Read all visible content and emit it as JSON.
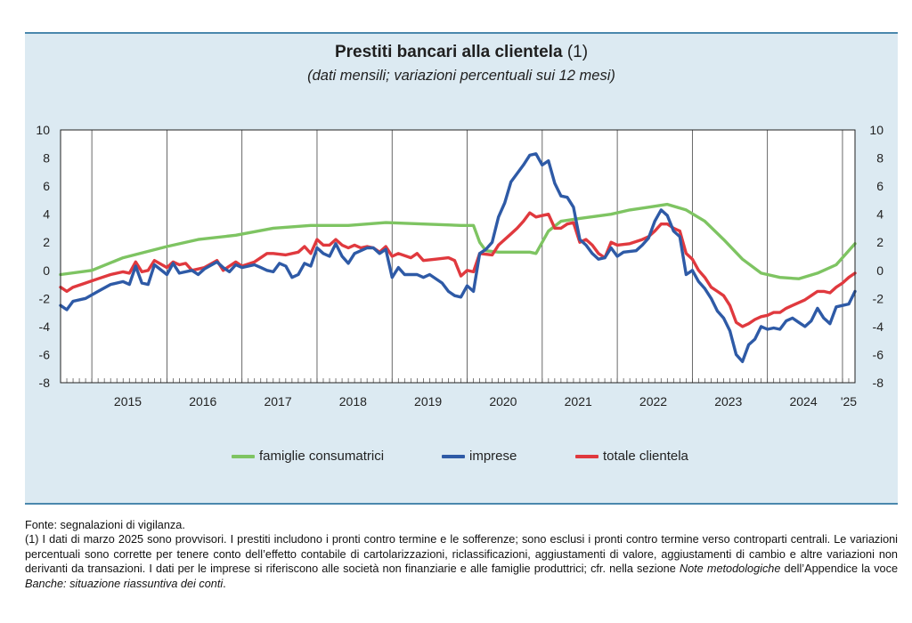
{
  "title": "Prestiti bancari alla clientela",
  "title_note": "(1)",
  "subtitle": "(dati mensili; variazioni percentuali sui 12 mesi)",
  "chart_data": {
    "type": "line",
    "y_range": [
      -8,
      10
    ],
    "y_ticks": [
      10,
      8,
      6,
      4,
      2,
      0,
      -2,
      -4,
      -6,
      -8
    ],
    "y_ticks_right": true,
    "grid": "vertical-yearly",
    "x_start": "2014-08",
    "x_end": "2025-03",
    "year_labels": [
      {
        "label": "2015",
        "year": 2015
      },
      {
        "label": "2016",
        "year": 2016
      },
      {
        "label": "2017",
        "year": 2017
      },
      {
        "label": "2018",
        "year": 2018
      },
      {
        "label": "2019",
        "year": 2019
      },
      {
        "label": "2020",
        "year": 2020
      },
      {
        "label": "2021",
        "year": 2021
      },
      {
        "label": "2022",
        "year": 2022
      },
      {
        "label": "2023",
        "year": 2023
      },
      {
        "label": "2024",
        "year": 2024
      },
      {
        "label": "'25",
        "year": 2025
      }
    ],
    "legend_placement": "bottom",
    "series": [
      {
        "name": "famiglie consumatrici",
        "color": "#7ec462",
        "points": [
          [
            "2014-08",
            -0.3
          ],
          [
            "2015-01",
            0
          ],
          [
            "2015-06",
            0.9
          ],
          [
            "2016-01",
            1.7
          ],
          [
            "2016-06",
            2.2
          ],
          [
            "2016-12",
            2.5
          ],
          [
            "2017-06",
            3.0
          ],
          [
            "2017-12",
            3.2
          ],
          [
            "2018-06",
            3.2
          ],
          [
            "2018-12",
            3.4
          ],
          [
            "2019-06",
            3.3
          ],
          [
            "2019-12",
            3.2
          ],
          [
            "2020-02",
            3.2
          ],
          [
            "2020-03",
            2.0
          ],
          [
            "2020-04",
            1.4
          ],
          [
            "2020-06",
            1.3
          ],
          [
            "2020-09",
            1.3
          ],
          [
            "2020-11",
            1.3
          ],
          [
            "2020-12",
            1.2
          ],
          [
            "2021-02",
            2.8
          ],
          [
            "2021-04",
            3.5
          ],
          [
            "2021-07",
            3.7
          ],
          [
            "2021-12",
            4.0
          ],
          [
            "2022-03",
            4.3
          ],
          [
            "2022-06",
            4.5
          ],
          [
            "2022-09",
            4.7
          ],
          [
            "2022-12",
            4.3
          ],
          [
            "2023-03",
            3.5
          ],
          [
            "2023-06",
            2.2
          ],
          [
            "2023-09",
            0.8
          ],
          [
            "2023-12",
            -0.2
          ],
          [
            "2024-03",
            -0.5
          ],
          [
            "2024-06",
            -0.6
          ],
          [
            "2024-09",
            -0.2
          ],
          [
            "2024-12",
            0.4
          ],
          [
            "2025-03",
            1.9
          ]
        ]
      },
      {
        "name": "imprese",
        "color": "#2e5aa6",
        "points": [
          [
            "2014-08",
            -2.5
          ],
          [
            "2014-09",
            -2.8
          ],
          [
            "2014-10",
            -2.2
          ],
          [
            "2014-12",
            -2.0
          ],
          [
            "2015-02",
            -1.5
          ],
          [
            "2015-04",
            -1.0
          ],
          [
            "2015-06",
            -0.8
          ],
          [
            "2015-07",
            -1.0
          ],
          [
            "2015-08",
            0.3
          ],
          [
            "2015-09",
            -0.9
          ],
          [
            "2015-10",
            -1.0
          ],
          [
            "2015-11",
            0.4
          ],
          [
            "2016-01",
            -0.3
          ],
          [
            "2016-02",
            0.5
          ],
          [
            "2016-03",
            -0.2
          ],
          [
            "2016-05",
            0.0
          ],
          [
            "2016-06",
            -0.3
          ],
          [
            "2016-07",
            0.1
          ],
          [
            "2016-09",
            0.6
          ],
          [
            "2016-10",
            0.2
          ],
          [
            "2016-11",
            -0.1
          ],
          [
            "2016-12",
            0.4
          ],
          [
            "2017-01",
            0.2
          ],
          [
            "2017-03",
            0.4
          ],
          [
            "2017-04",
            0.2
          ],
          [
            "2017-05",
            0.0
          ],
          [
            "2017-06",
            -0.1
          ],
          [
            "2017-07",
            0.5
          ],
          [
            "2017-08",
            0.3
          ],
          [
            "2017-09",
            -0.5
          ],
          [
            "2017-10",
            -0.3
          ],
          [
            "2017-11",
            0.5
          ],
          [
            "2017-12",
            0.3
          ],
          [
            "2018-01",
            1.6
          ],
          [
            "2018-02",
            1.2
          ],
          [
            "2018-03",
            1.0
          ],
          [
            "2018-04",
            1.9
          ],
          [
            "2018-05",
            1.0
          ],
          [
            "2018-06",
            0.5
          ],
          [
            "2018-07",
            1.2
          ],
          [
            "2018-09",
            1.6
          ],
          [
            "2018-10",
            1.6
          ],
          [
            "2018-11",
            1.2
          ],
          [
            "2018-12",
            1.5
          ],
          [
            "2019-01",
            -0.5
          ],
          [
            "2019-02",
            0.2
          ],
          [
            "2019-03",
            -0.3
          ],
          [
            "2019-05",
            -0.3
          ],
          [
            "2019-06",
            -0.5
          ],
          [
            "2019-07",
            -0.3
          ],
          [
            "2019-09",
            -0.9
          ],
          [
            "2019-10",
            -1.5
          ],
          [
            "2019-11",
            -1.8
          ],
          [
            "2019-12",
            -1.9
          ],
          [
            "2020-01",
            -1.1
          ],
          [
            "2020-02",
            -1.5
          ],
          [
            "2020-03",
            1.2
          ],
          [
            "2020-04",
            1.5
          ],
          [
            "2020-05",
            2.0
          ],
          [
            "2020-06",
            3.8
          ],
          [
            "2020-07",
            4.8
          ],
          [
            "2020-08",
            6.3
          ],
          [
            "2020-09",
            6.9
          ],
          [
            "2020-10",
            7.5
          ],
          [
            "2020-11",
            8.2
          ],
          [
            "2020-12",
            8.3
          ],
          [
            "2021-01",
            7.5
          ],
          [
            "2021-02",
            7.8
          ],
          [
            "2021-03",
            6.2
          ],
          [
            "2021-04",
            5.3
          ],
          [
            "2021-05",
            5.2
          ],
          [
            "2021-06",
            4.5
          ],
          [
            "2021-07",
            2.2
          ],
          [
            "2021-08",
            1.8
          ],
          [
            "2021-09",
            1.2
          ],
          [
            "2021-10",
            0.8
          ],
          [
            "2021-11",
            0.9
          ],
          [
            "2021-12",
            1.6
          ],
          [
            "2022-01",
            1.0
          ],
          [
            "2022-02",
            1.3
          ],
          [
            "2022-04",
            1.4
          ],
          [
            "2022-05",
            1.8
          ],
          [
            "2022-06",
            2.3
          ],
          [
            "2022-07",
            3.5
          ],
          [
            "2022-08",
            4.3
          ],
          [
            "2022-09",
            3.9
          ],
          [
            "2022-10",
            2.8
          ],
          [
            "2022-11",
            2.4
          ],
          [
            "2022-12",
            -0.3
          ],
          [
            "2023-01",
            0.0
          ],
          [
            "2023-02",
            -0.8
          ],
          [
            "2023-03",
            -1.3
          ],
          [
            "2023-04",
            -2.0
          ],
          [
            "2023-05",
            -2.9
          ],
          [
            "2023-06",
            -3.4
          ],
          [
            "2023-07",
            -4.3
          ],
          [
            "2023-08",
            -6.0
          ],
          [
            "2023-09",
            -6.5
          ],
          [
            "2023-10",
            -5.3
          ],
          [
            "2023-11",
            -4.9
          ],
          [
            "2023-12",
            -4.0
          ],
          [
            "2024-01",
            -4.2
          ],
          [
            "2024-02",
            -4.1
          ],
          [
            "2024-03",
            -4.2
          ],
          [
            "2024-04",
            -3.6
          ],
          [
            "2024-05",
            -3.4
          ],
          [
            "2024-06",
            -3.7
          ],
          [
            "2024-07",
            -4.0
          ],
          [
            "2024-08",
            -3.6
          ],
          [
            "2024-09",
            -2.7
          ],
          [
            "2024-10",
            -3.4
          ],
          [
            "2024-11",
            -3.8
          ],
          [
            "2024-12",
            -2.6
          ],
          [
            "2025-01",
            -2.5
          ],
          [
            "2025-02",
            -2.4
          ],
          [
            "2025-03",
            -1.5
          ]
        ]
      },
      {
        "name": "totale  clientela",
        "color": "#e0393e",
        "points": [
          [
            "2014-08",
            -1.2
          ],
          [
            "2014-09",
            -1.5
          ],
          [
            "2014-10",
            -1.2
          ],
          [
            "2014-12",
            -0.9
          ],
          [
            "2015-02",
            -0.6
          ],
          [
            "2015-04",
            -0.3
          ],
          [
            "2015-06",
            -0.1
          ],
          [
            "2015-07",
            -0.2
          ],
          [
            "2015-08",
            0.6
          ],
          [
            "2015-09",
            -0.1
          ],
          [
            "2015-10",
            0.0
          ],
          [
            "2015-11",
            0.7
          ],
          [
            "2016-01",
            0.2
          ],
          [
            "2016-02",
            0.6
          ],
          [
            "2016-03",
            0.4
          ],
          [
            "2016-04",
            0.5
          ],
          [
            "2016-05",
            0.0
          ],
          [
            "2016-07",
            0.2
          ],
          [
            "2016-09",
            0.7
          ],
          [
            "2016-10",
            0.0
          ],
          [
            "2016-11",
            0.3
          ],
          [
            "2016-12",
            0.6
          ],
          [
            "2017-01",
            0.3
          ],
          [
            "2017-03",
            0.6
          ],
          [
            "2017-05",
            1.2
          ],
          [
            "2017-06",
            1.2
          ],
          [
            "2017-08",
            1.1
          ],
          [
            "2017-10",
            1.3
          ],
          [
            "2017-11",
            1.7
          ],
          [
            "2017-12",
            1.2
          ],
          [
            "2018-01",
            2.2
          ],
          [
            "2018-02",
            1.8
          ],
          [
            "2018-03",
            1.8
          ],
          [
            "2018-04",
            2.2
          ],
          [
            "2018-05",
            1.8
          ],
          [
            "2018-06",
            1.6
          ],
          [
            "2018-07",
            1.8
          ],
          [
            "2018-08",
            1.6
          ],
          [
            "2018-09",
            1.7
          ],
          [
            "2018-10",
            1.6
          ],
          [
            "2018-11",
            1.3
          ],
          [
            "2018-12",
            1.7
          ],
          [
            "2019-01",
            1.0
          ],
          [
            "2019-02",
            1.2
          ],
          [
            "2019-04",
            0.9
          ],
          [
            "2019-05",
            1.2
          ],
          [
            "2019-06",
            0.7
          ],
          [
            "2019-08",
            0.8
          ],
          [
            "2019-10",
            0.9
          ],
          [
            "2019-11",
            0.7
          ],
          [
            "2019-12",
            -0.4
          ],
          [
            "2020-01",
            0.0
          ],
          [
            "2020-02",
            -0.1
          ],
          [
            "2020-03",
            1.2
          ],
          [
            "2020-05",
            1.1
          ],
          [
            "2020-06",
            1.8
          ],
          [
            "2020-08",
            2.6
          ],
          [
            "2020-09",
            3.0
          ],
          [
            "2020-10",
            3.5
          ],
          [
            "2020-11",
            4.1
          ],
          [
            "2020-12",
            3.8
          ],
          [
            "2021-01",
            3.9
          ],
          [
            "2021-02",
            4.0
          ],
          [
            "2021-03",
            3.0
          ],
          [
            "2021-04",
            3.0
          ],
          [
            "2021-05",
            3.3
          ],
          [
            "2021-06",
            3.4
          ],
          [
            "2021-07",
            2.0
          ],
          [
            "2021-08",
            2.2
          ],
          [
            "2021-09",
            1.8
          ],
          [
            "2021-10",
            1.2
          ],
          [
            "2021-11",
            0.9
          ],
          [
            "2021-12",
            2.0
          ],
          [
            "2022-01",
            1.8
          ],
          [
            "2022-03",
            1.9
          ],
          [
            "2022-05",
            2.2
          ],
          [
            "2022-06",
            2.4
          ],
          [
            "2022-07",
            2.8
          ],
          [
            "2022-08",
            3.3
          ],
          [
            "2022-09",
            3.3
          ],
          [
            "2022-10",
            3.0
          ],
          [
            "2022-11",
            2.8
          ],
          [
            "2022-12",
            1.2
          ],
          [
            "2023-01",
            0.8
          ],
          [
            "2023-02",
            0.0
          ],
          [
            "2023-03",
            -0.5
          ],
          [
            "2023-04",
            -1.2
          ],
          [
            "2023-05",
            -1.5
          ],
          [
            "2023-06",
            -1.8
          ],
          [
            "2023-07",
            -2.5
          ],
          [
            "2023-08",
            -3.7
          ],
          [
            "2023-09",
            -4.0
          ],
          [
            "2023-10",
            -3.8
          ],
          [
            "2023-11",
            -3.5
          ],
          [
            "2023-12",
            -3.3
          ],
          [
            "2024-01",
            -3.2
          ],
          [
            "2024-02",
            -3.0
          ],
          [
            "2024-03",
            -3.0
          ],
          [
            "2024-04",
            -2.7
          ],
          [
            "2024-05",
            -2.5
          ],
          [
            "2024-06",
            -2.3
          ],
          [
            "2024-07",
            -2.1
          ],
          [
            "2024-08",
            -1.8
          ],
          [
            "2024-09",
            -1.5
          ],
          [
            "2024-10",
            -1.5
          ],
          [
            "2024-11",
            -1.6
          ],
          [
            "2024-12",
            -1.2
          ],
          [
            "2025-01",
            -0.9
          ],
          [
            "2025-02",
            -0.5
          ],
          [
            "2025-03",
            -0.2
          ]
        ]
      }
    ]
  },
  "footnotes": {
    "source": "Fonte: segnalazioni di vigilanza.",
    "note_part1": "(1) I dati di marzo 2025 sono provvisori. I prestiti includono i pronti contro termine e le sofferenze; sono esclusi i pronti contro termine verso controparti centrali. Le variazioni percentuali sono corrette per tenere conto dell’effetto contabile di cartolarizzazioni, riclassificazioni, aggiustamenti di valore, aggiustamenti di cambio e altre variazioni non derivanti da transazioni. I dati per le imprese si riferiscono alle società non finanziarie e alle famiglie produttrici; cfr. nella sezione ",
    "note_italic1": "Note metodologiche",
    "note_part2": " dell’Appendice la voce ",
    "note_italic2": "Banche: situazione riassuntiva dei conti",
    "note_part3": "."
  }
}
